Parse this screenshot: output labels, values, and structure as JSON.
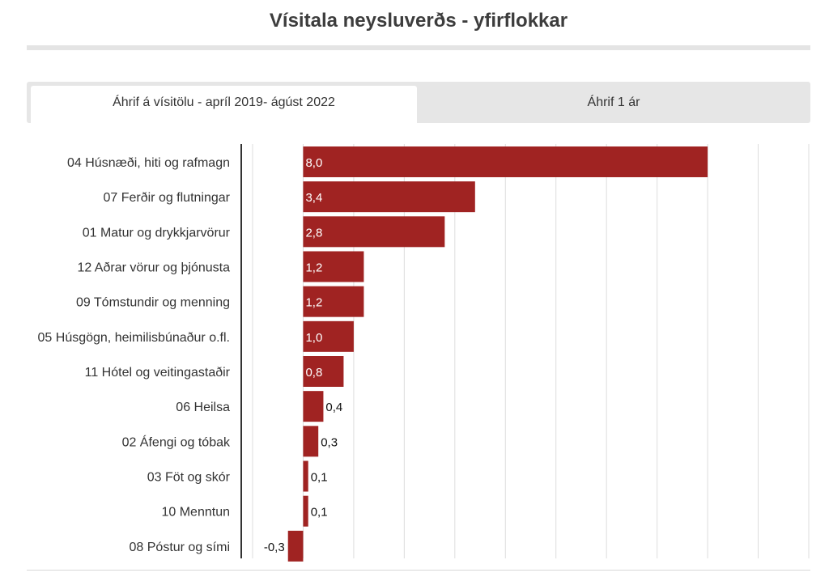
{
  "title": "Vísitala neysluverðs - yfirflokkar",
  "tabs": [
    {
      "label": "Áhrif á vísitölu - apríl 2019- ágúst 2022",
      "active": true
    },
    {
      "label": "Áhrif 1 ár",
      "active": false
    }
  ],
  "colors": {
    "bar": "#a02322",
    "grid": "#dddddd",
    "axis": "#333333"
  },
  "chart_data": {
    "type": "bar",
    "orientation": "horizontal",
    "categories": [
      "04 Húsnæði, hiti og rafmagn",
      "07 Ferðir og flutningar",
      "01 Matur og drykkjarvörur",
      "12 Aðrar vörur og þjónusta",
      "09 Tómstundir og menning",
      "05 Húsgögn, heimilisbúnaður o.fl.",
      "11 Hótel og veitingastaðir",
      "06 Heilsa",
      "02 Áfengi og tóbak",
      "03 Föt og skór",
      "10 Menntun",
      "08 Póstur og sími"
    ],
    "values": [
      8.0,
      3.4,
      2.8,
      1.2,
      1.2,
      1.0,
      0.8,
      0.4,
      0.3,
      0.1,
      0.1,
      -0.3
    ],
    "value_labels": [
      "8,0",
      "3,4",
      "2,8",
      "1,2",
      "1,2",
      "1,0",
      "0,8",
      "0,4",
      "0,3",
      "0,1",
      "0,1",
      "-0,3"
    ],
    "xlim": [
      -1,
      10
    ],
    "grid": true,
    "legend": "none"
  }
}
